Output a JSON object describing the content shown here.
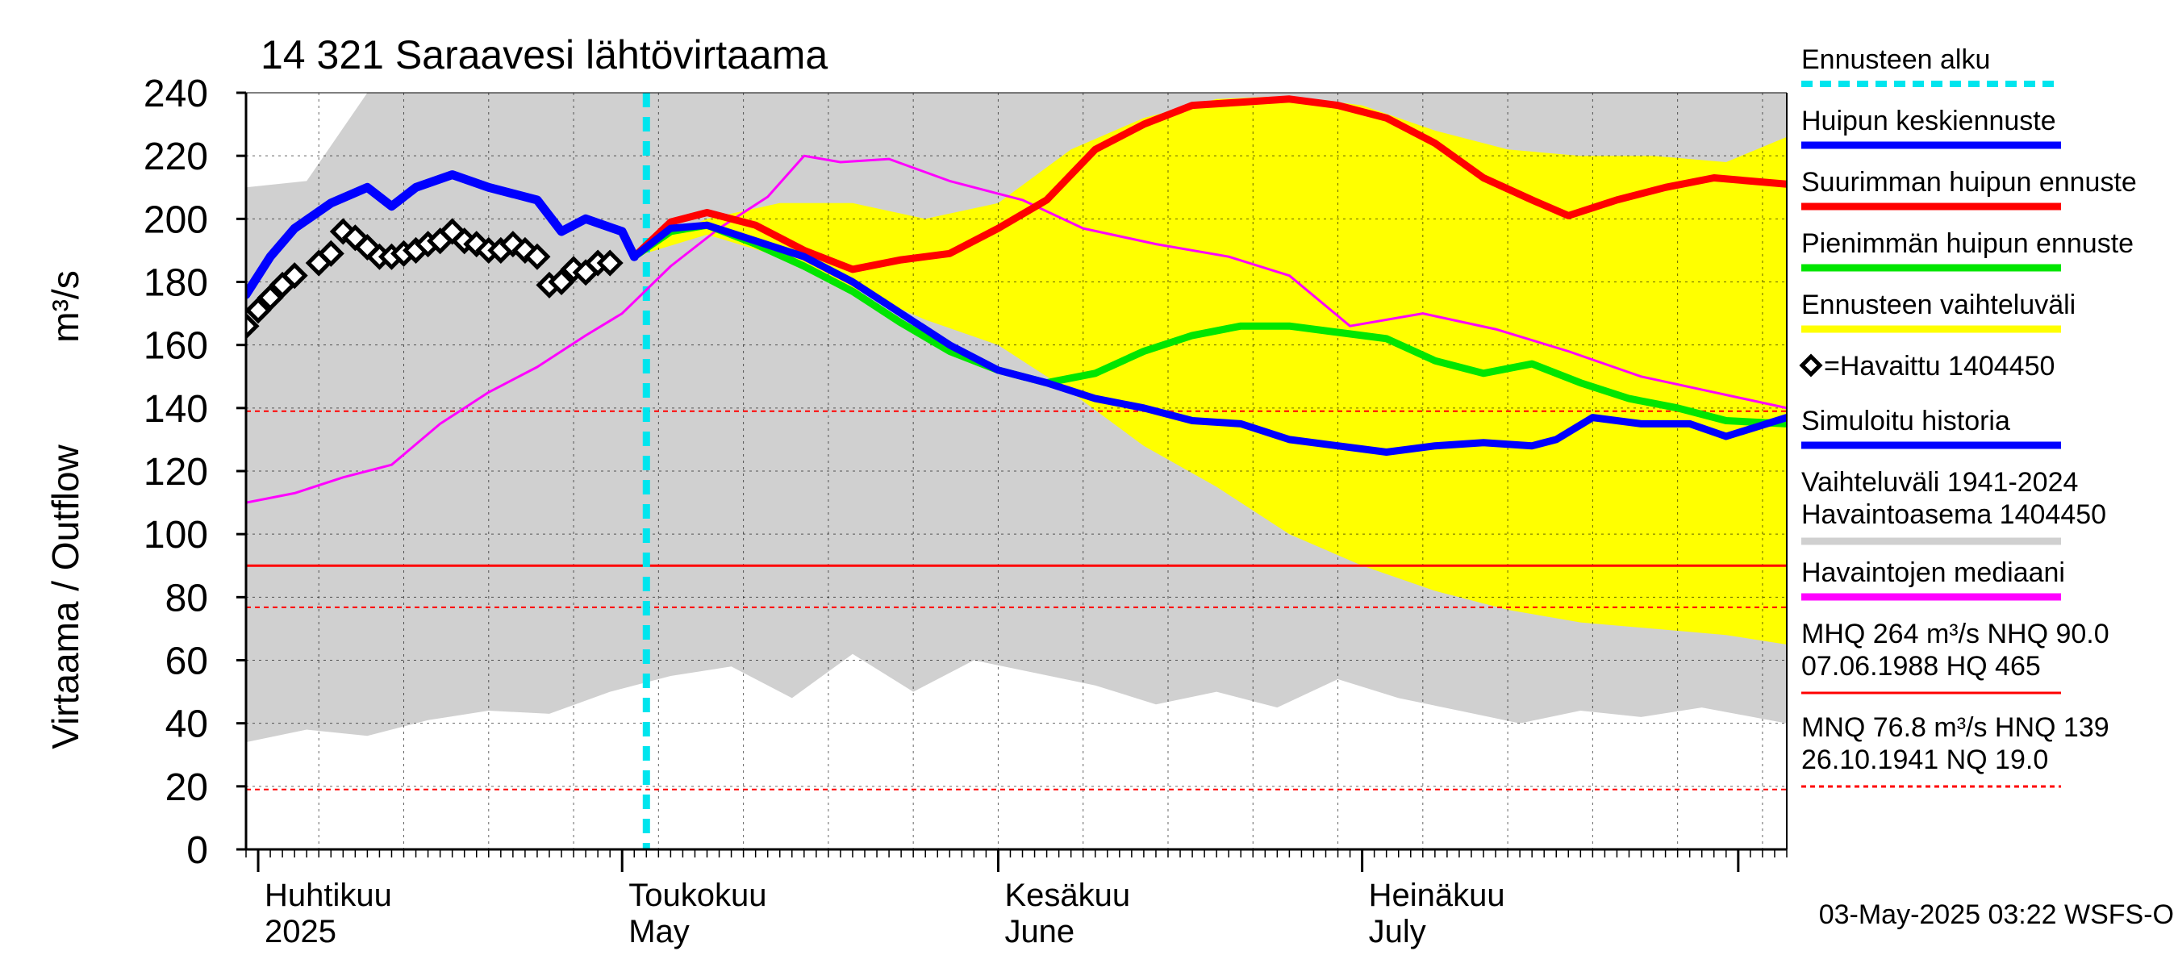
{
  "chart_data": {
    "type": "line",
    "title": "14 321 Saraavesi lähtövirtaama",
    "ylabel": "Virtaama / Outflow",
    "yunit": "m³/s",
    "ylim": [
      0,
      240
    ],
    "yticks": [
      0,
      20,
      40,
      60,
      80,
      100,
      120,
      140,
      160,
      180,
      200,
      220,
      240
    ],
    "xlim": [
      "2025-03-31",
      "2025-08-05"
    ],
    "month_labels": [
      {
        "date": "2025-04-01",
        "fi": "Huhtikuu",
        "en": "2025"
      },
      {
        "date": "2025-05-01",
        "fi": "Toukokuu",
        "en": "May"
      },
      {
        "date": "2025-06-01",
        "fi": "Kesäkuu",
        "en": "June"
      },
      {
        "date": "2025-07-01",
        "fi": "Heinäkuu",
        "en": "July"
      }
    ],
    "forecast_start": "2025-05-03",
    "reference_lines": [
      {
        "name": "MHQ",
        "value": 264,
        "style": "solid"
      },
      {
        "name": "NHQ",
        "value": 90.0,
        "style": "solid"
      },
      {
        "name": "MNQ",
        "value": 76.8,
        "style": "dashed"
      },
      {
        "name": "HNQ",
        "value": 139,
        "style": "dashed"
      },
      {
        "name": "NQ",
        "value": 19.0,
        "style": "dashed"
      }
    ],
    "series": [
      {
        "key": "max_peak",
        "name": "Suurimman huipun ennuste",
        "color": "#ff0000",
        "x": [
          "2025-05-02",
          "2025-05-05",
          "2025-05-08",
          "2025-05-12",
          "2025-05-16",
          "2025-05-20",
          "2025-05-24",
          "2025-05-28",
          "2025-06-01",
          "2025-06-05",
          "2025-06-09",
          "2025-06-13",
          "2025-06-17",
          "2025-06-21",
          "2025-06-25",
          "2025-06-29",
          "2025-07-03",
          "2025-07-07",
          "2025-07-11",
          "2025-07-15",
          "2025-07-18",
          "2025-07-22",
          "2025-07-26",
          "2025-07-30",
          "2025-08-05"
        ],
        "values": [
          188,
          199,
          202,
          198,
          190,
          184,
          187,
          189,
          197,
          206,
          222,
          230,
          236,
          237,
          238,
          236,
          232,
          224,
          213,
          206,
          201,
          206,
          210,
          213,
          211
        ]
      },
      {
        "key": "min_peak",
        "name": "Pienimmän huipun ennuste",
        "color": "#00e600",
        "x": [
          "2025-05-02",
          "2025-05-05",
          "2025-05-08",
          "2025-05-12",
          "2025-05-16",
          "2025-05-20",
          "2025-05-24",
          "2025-05-28",
          "2025-06-01",
          "2025-06-05",
          "2025-06-09",
          "2025-06-13",
          "2025-06-17",
          "2025-06-21",
          "2025-06-25",
          "2025-06-29",
          "2025-07-03",
          "2025-07-07",
          "2025-07-11",
          "2025-07-15",
          "2025-07-19",
          "2025-07-23",
          "2025-07-27",
          "2025-07-31",
          "2025-08-05"
        ],
        "values": [
          188,
          196,
          198,
          192,
          185,
          177,
          167,
          158,
          152,
          148,
          151,
          158,
          163,
          166,
          166,
          164,
          162,
          155,
          151,
          154,
          148,
          143,
          140,
          136,
          135
        ]
      },
      {
        "key": "mean_peak",
        "name": "Huipun keskiennuste",
        "color": "#0000ff",
        "x": [
          "2025-05-02",
          "2025-05-05",
          "2025-05-08",
          "2025-05-12",
          "2025-05-16",
          "2025-05-20",
          "2025-05-24",
          "2025-05-28",
          "2025-06-01",
          "2025-06-05",
          "2025-06-09",
          "2025-06-13",
          "2025-06-17",
          "2025-06-21",
          "2025-06-25",
          "2025-06-29",
          "2025-07-03",
          "2025-07-07",
          "2025-07-11",
          "2025-07-15",
          "2025-07-17",
          "2025-07-20",
          "2025-07-24",
          "2025-07-28",
          "2025-07-31",
          "2025-08-05"
        ],
        "values": [
          188,
          197,
          198,
          193,
          188,
          180,
          170,
          160,
          152,
          148,
          143,
          140,
          136,
          135,
          130,
          128,
          126,
          128,
          129,
          128,
          130,
          137,
          135,
          135,
          131,
          137
        ]
      },
      {
        "key": "simulated",
        "name": "Simuloitu historia",
        "color": "#0000ff",
        "x": [
          "2025-03-31",
          "2025-04-02",
          "2025-04-04",
          "2025-04-07",
          "2025-04-10",
          "2025-04-12",
          "2025-04-14",
          "2025-04-17",
          "2025-04-20",
          "2025-04-24",
          "2025-04-26",
          "2025-04-28",
          "2025-05-01",
          "2025-05-02"
        ],
        "values": [
          176,
          188,
          197,
          205,
          210,
          204,
          210,
          214,
          210,
          206,
          196,
          200,
          196,
          188
        ]
      },
      {
        "key": "median",
        "name": "Havaintojen mediaani",
        "color": "#ff00ff",
        "x": [
          "2025-03-31",
          "2025-04-04",
          "2025-04-08",
          "2025-04-12",
          "2025-04-16",
          "2025-04-20",
          "2025-04-24",
          "2025-04-28",
          "2025-05-01",
          "2025-05-05",
          "2025-05-09",
          "2025-05-13",
          "2025-05-16",
          "2025-05-19",
          "2025-05-23",
          "2025-05-28",
          "2025-06-03",
          "2025-06-08",
          "2025-06-14",
          "2025-06-20",
          "2025-06-25",
          "2025-06-30",
          "2025-07-06",
          "2025-07-12",
          "2025-07-18",
          "2025-07-24",
          "2025-07-30",
          "2025-08-05"
        ],
        "values": [
          110,
          113,
          118,
          122,
          135,
          145,
          153,
          163,
          170,
          185,
          197,
          207,
          220,
          218,
          219,
          212,
          206,
          197,
          192,
          188,
          182,
          166,
          170,
          165,
          158,
          150,
          145,
          140
        ]
      },
      {
        "key": "observed",
        "name": "=Havaittu 1404450",
        "color": "#000000",
        "marker": "diamond",
        "x": [
          "2025-03-31",
          "2025-04-01",
          "2025-04-02",
          "2025-04-03",
          "2025-04-04",
          "2025-04-06",
          "2025-04-07",
          "2025-04-08",
          "2025-04-09",
          "2025-04-10",
          "2025-04-11",
          "2025-04-12",
          "2025-04-13",
          "2025-04-14",
          "2025-04-15",
          "2025-04-16",
          "2025-04-17",
          "2025-04-18",
          "2025-04-19",
          "2025-04-20",
          "2025-04-21",
          "2025-04-22",
          "2025-04-23",
          "2025-04-24",
          "2025-04-25",
          "2025-04-26",
          "2025-04-27",
          "2025-04-28",
          "2025-04-29",
          "2025-04-30"
        ],
        "values": [
          166,
          171,
          175,
          179,
          182,
          186,
          189,
          196,
          194,
          191,
          188,
          188,
          189,
          190,
          192,
          193,
          196,
          193,
          192,
          190,
          190,
          192,
          190,
          188,
          179,
          180,
          184,
          183,
          186,
          186
        ]
      }
    ],
    "bands": [
      {
        "key": "forecast_range",
        "name": "Ennusteen vaihteluväli",
        "color": "#ffff00",
        "x": [
          "2025-05-02",
          "2025-05-08",
          "2025-05-14",
          "2025-05-20",
          "2025-05-26",
          "2025-06-01",
          "2025-06-07",
          "2025-06-13",
          "2025-06-19",
          "2025-06-25",
          "2025-07-01",
          "2025-07-07",
          "2025-07-13",
          "2025-07-19",
          "2025-07-25",
          "2025-07-31",
          "2025-08-05"
        ],
        "high": [
          190,
          200,
          205,
          205,
          200,
          205,
          222,
          232,
          238,
          239,
          236,
          228,
          222,
          220,
          220,
          218,
          226
        ],
        "low": [
          188,
          195,
          188,
          178,
          168,
          160,
          145,
          128,
          115,
          100,
          90,
          82,
          76,
          72,
          70,
          68,
          65
        ]
      },
      {
        "key": "history_range",
        "name": "Vaihteluväli 1941-2024 Havaintoasema 1404450",
        "color": "#d0d0d0",
        "x": [
          "2025-03-31",
          "2025-04-05",
          "2025-04-10",
          "2025-04-15",
          "2025-04-20",
          "2025-04-25",
          "2025-04-30",
          "2025-05-05",
          "2025-05-10",
          "2025-05-15",
          "2025-05-20",
          "2025-05-25",
          "2025-05-30",
          "2025-06-04",
          "2025-06-09",
          "2025-06-14",
          "2025-06-19",
          "2025-06-24",
          "2025-06-29",
          "2025-07-04",
          "2025-07-09",
          "2025-07-14",
          "2025-07-19",
          "2025-07-24",
          "2025-07-29",
          "2025-08-05"
        ],
        "high": [
          210,
          212,
          240,
          240,
          240,
          240,
          240,
          240,
          240,
          240,
          240,
          240,
          240,
          240,
          240,
          240,
          240,
          240,
          240,
          240,
          240,
          240,
          240,
          240,
          240,
          240
        ],
        "low": [
          34,
          38,
          36,
          41,
          44,
          43,
          50,
          55,
          58,
          48,
          62,
          50,
          60,
          56,
          52,
          46,
          50,
          45,
          54,
          48,
          44,
          40,
          44,
          42,
          45,
          40
        ]
      }
    ],
    "legend": [
      {
        "label": "Ennusteen alku",
        "color": "#00e5ee",
        "style": "dashed"
      },
      {
        "label": "Huipun keskiennuste",
        "color": "#0000ff",
        "style": "line"
      },
      {
        "label": "Suurimman huipun ennuste",
        "color": "#ff0000",
        "style": "line"
      },
      {
        "label": "Pienimmän huipun ennuste",
        "color": "#00e600",
        "style": "line"
      },
      {
        "label": "Ennusteen vaihteluväli",
        "color": "#ffff00",
        "style": "line"
      },
      {
        "label": "=Havaittu 1404450",
        "color": "#000000",
        "style": "marker"
      },
      {
        "label": "Simuloitu historia",
        "color": "#0000ff",
        "style": "line"
      },
      {
        "label": "Vaihteluväli 1941-2024",
        "label2": " Havaintoasema 1404450",
        "color": "#d0d0d0",
        "style": "line"
      },
      {
        "label": "Havaintojen mediaani",
        "color": "#ff00ff",
        "style": "line"
      },
      {
        "label": "MHQ  264 m³/s NHQ 90.0",
        "label2": "07.06.1988 HQ  465",
        "color": "#ff0000",
        "style": "thin"
      },
      {
        "label": "MNQ 76.8 m³/s HNQ  139",
        "label2": "26.10.1941 NQ 19.0",
        "color": "#ff0000",
        "style": "thin-dashed"
      }
    ],
    "legend_position": "right",
    "grid": true,
    "footer": "03-May-2025 03:22 WSFS-O"
  }
}
